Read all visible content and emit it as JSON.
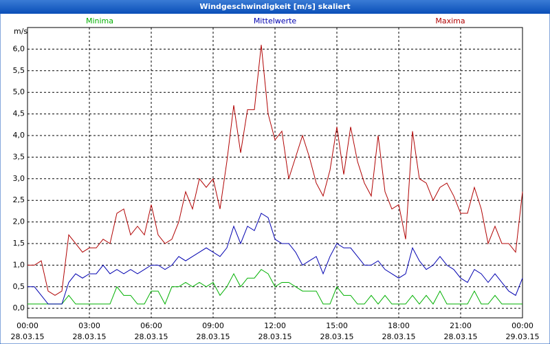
{
  "chart_data": {
    "type": "line",
    "title": "Windgeschwindigkeit [m/s] skaliert",
    "y_label": "m/s",
    "x": [
      0,
      20,
      40,
      60,
      80,
      100,
      120,
      140,
      160,
      180,
      200,
      220,
      240,
      260,
      280,
      300,
      320,
      340,
      360,
      380,
      400,
      420,
      440,
      460,
      480,
      500,
      520,
      540,
      560,
      580,
      600,
      620,
      640,
      660,
      680,
      700,
      720,
      740,
      760,
      780,
      800,
      820,
      840,
      860,
      880,
      900,
      920,
      940,
      960,
      980,
      1000,
      1020,
      1040,
      1060,
      1080,
      1100,
      1120,
      1140,
      1160,
      1180,
      1200,
      1220,
      1240,
      1260,
      1280,
      1300,
      1320,
      1340,
      1360,
      1380,
      1400,
      1420,
      1440
    ],
    "series": [
      {
        "name": "Minima",
        "color": "#00b000",
        "values": [
          0.1,
          0.1,
          0.1,
          0.1,
          0.1,
          0.1,
          0.3,
          0.1,
          0.1,
          0.1,
          0.1,
          0.1,
          0.1,
          0.5,
          0.3,
          0.3,
          0.1,
          0.1,
          0.4,
          0.4,
          0.1,
          0.5,
          0.5,
          0.6,
          0.5,
          0.6,
          0.5,
          0.6,
          0.3,
          0.5,
          0.8,
          0.5,
          0.7,
          0.7,
          0.9,
          0.8,
          0.5,
          0.6,
          0.6,
          0.5,
          0.4,
          0.4,
          0.4,
          0.1,
          0.1,
          0.5,
          0.3,
          0.3,
          0.1,
          0.1,
          0.3,
          0.1,
          0.3,
          0.1,
          0.1,
          0.1,
          0.3,
          0.1,
          0.3,
          0.1,
          0.4,
          0.1,
          0.1,
          0.1,
          0.1,
          0.4,
          0.1,
          0.1,
          0.3,
          0.1,
          0.1,
          0.1,
          0.1
        ]
      },
      {
        "name": "Mittelwerte",
        "color": "#0000b0",
        "values": [
          0.5,
          0.5,
          0.3,
          0.1,
          0.1,
          0.1,
          0.6,
          0.8,
          0.7,
          0.8,
          0.8,
          1.0,
          0.8,
          0.9,
          0.8,
          0.9,
          0.8,
          0.9,
          1.0,
          1.0,
          0.9,
          1.0,
          1.2,
          1.1,
          1.2,
          1.3,
          1.4,
          1.3,
          1.2,
          1.4,
          1.9,
          1.5,
          1.9,
          1.8,
          2.2,
          2.1,
          1.6,
          1.5,
          1.5,
          1.3,
          1.0,
          1.1,
          1.2,
          0.8,
          1.2,
          1.5,
          1.4,
          1.4,
          1.2,
          1.0,
          1.0,
          1.1,
          0.9,
          0.8,
          0.7,
          0.8,
          1.4,
          1.1,
          0.9,
          1.0,
          1.2,
          1.0,
          0.9,
          0.7,
          0.6,
          0.9,
          0.8,
          0.6,
          0.8,
          0.6,
          0.4,
          0.3,
          0.7
        ]
      },
      {
        "name": "Maxima",
        "color": "#b00000",
        "values": [
          1.0,
          1.0,
          1.1,
          0.4,
          0.3,
          0.4,
          1.7,
          1.5,
          1.3,
          1.4,
          1.4,
          1.6,
          1.5,
          2.2,
          2.3,
          1.7,
          1.9,
          1.7,
          2.4,
          1.7,
          1.5,
          1.6,
          2.0,
          2.7,
          2.3,
          3.0,
          2.8,
          3.0,
          2.3,
          3.4,
          4.7,
          3.6,
          4.6,
          4.6,
          6.1,
          4.5,
          3.9,
          4.1,
          3.0,
          3.5,
          4.0,
          3.5,
          2.9,
          2.6,
          3.2,
          4.2,
          3.1,
          4.2,
          3.4,
          2.9,
          2.6,
          4.0,
          2.7,
          2.3,
          2.4,
          1.6,
          4.1,
          3.0,
          2.9,
          2.5,
          2.8,
          2.9,
          2.6,
          2.2,
          2.2,
          2.8,
          2.3,
          1.5,
          1.9,
          1.5,
          1.5,
          1.3,
          2.7
        ]
      }
    ],
    "xlim": [
      0,
      1440
    ],
    "xticks": [
      {
        "value": 0,
        "label": "00:00",
        "date": "28.03.15"
      },
      {
        "value": 180,
        "label": "03:00",
        "date": "28.03.15"
      },
      {
        "value": 360,
        "label": "06:00",
        "date": "28.03.15"
      },
      {
        "value": 540,
        "label": "09:00",
        "date": "28.03.15"
      },
      {
        "value": 720,
        "label": "12:00",
        "date": "28.03.15"
      },
      {
        "value": 900,
        "label": "15:00",
        "date": "28.03.15"
      },
      {
        "value": 1080,
        "label": "18:00",
        "date": "28.03.15"
      },
      {
        "value": 1260,
        "label": "21:00",
        "date": "28.03.15"
      },
      {
        "value": 1440,
        "label": "00:00",
        "date": "29.03.15"
      }
    ],
    "ylim": [
      -0.22,
      6.5
    ],
    "yticks": [
      {
        "value": 0,
        "label": "0,0"
      },
      {
        "value": 0.5,
        "label": "0,5"
      },
      {
        "value": 1,
        "label": "1,0"
      },
      {
        "value": 1.5,
        "label": "1,5"
      },
      {
        "value": 2,
        "label": "2,0"
      },
      {
        "value": 2.5,
        "label": "2,5"
      },
      {
        "value": 3,
        "label": "3,0"
      },
      {
        "value": 3.5,
        "label": "3,5"
      },
      {
        "value": 4,
        "label": "4,0"
      },
      {
        "value": 4.5,
        "label": "4,5"
      },
      {
        "value": 5,
        "label": "5,0"
      },
      {
        "value": 5.5,
        "label": "5,5"
      },
      {
        "value": 6,
        "label": "6,0"
      }
    ],
    "grid": true
  }
}
